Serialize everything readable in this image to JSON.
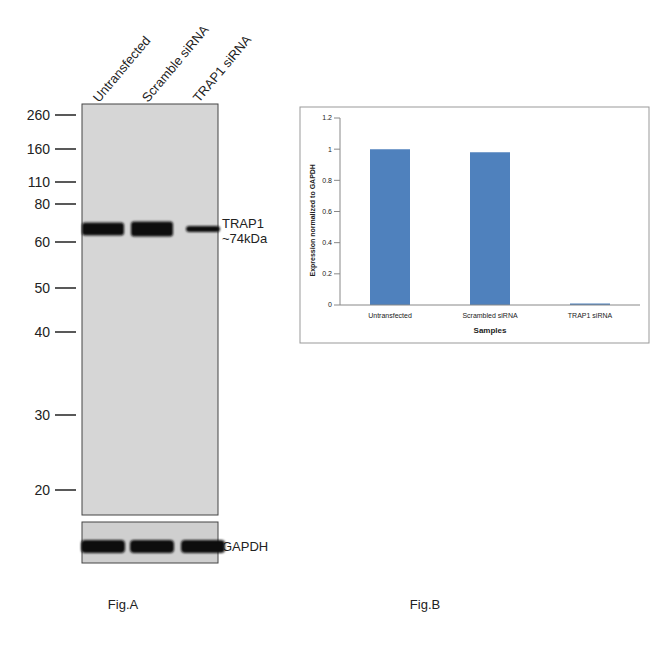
{
  "panel_labels": [
    "Fig.A",
    "Fig.B"
  ],
  "blot": {
    "lanes": [
      "Untransfected",
      "Scramble siRNA",
      "TRAP1 siRNA"
    ],
    "markers": [
      260,
      160,
      110,
      80,
      60,
      50,
      40,
      30,
      20
    ],
    "target": {
      "name": "TRAP1",
      "size": "~74kDa"
    },
    "loading_control": "GAPDH"
  },
  "chart_data": {
    "type": "bar",
    "categories": [
      "Untransfected",
      "Scrambled siRNA",
      "TRAP1 siRNA"
    ],
    "values": [
      1,
      0.98,
      0.01
    ],
    "color": "#4f81bd",
    "x_label": "Samples",
    "y_label": "Expression normalized to GAPDH",
    "ylim": [
      0,
      1.2
    ],
    "yticks": [
      0,
      0.2,
      0.4,
      0.6,
      0.8,
      1,
      1.2
    ],
    "grid": false
  }
}
